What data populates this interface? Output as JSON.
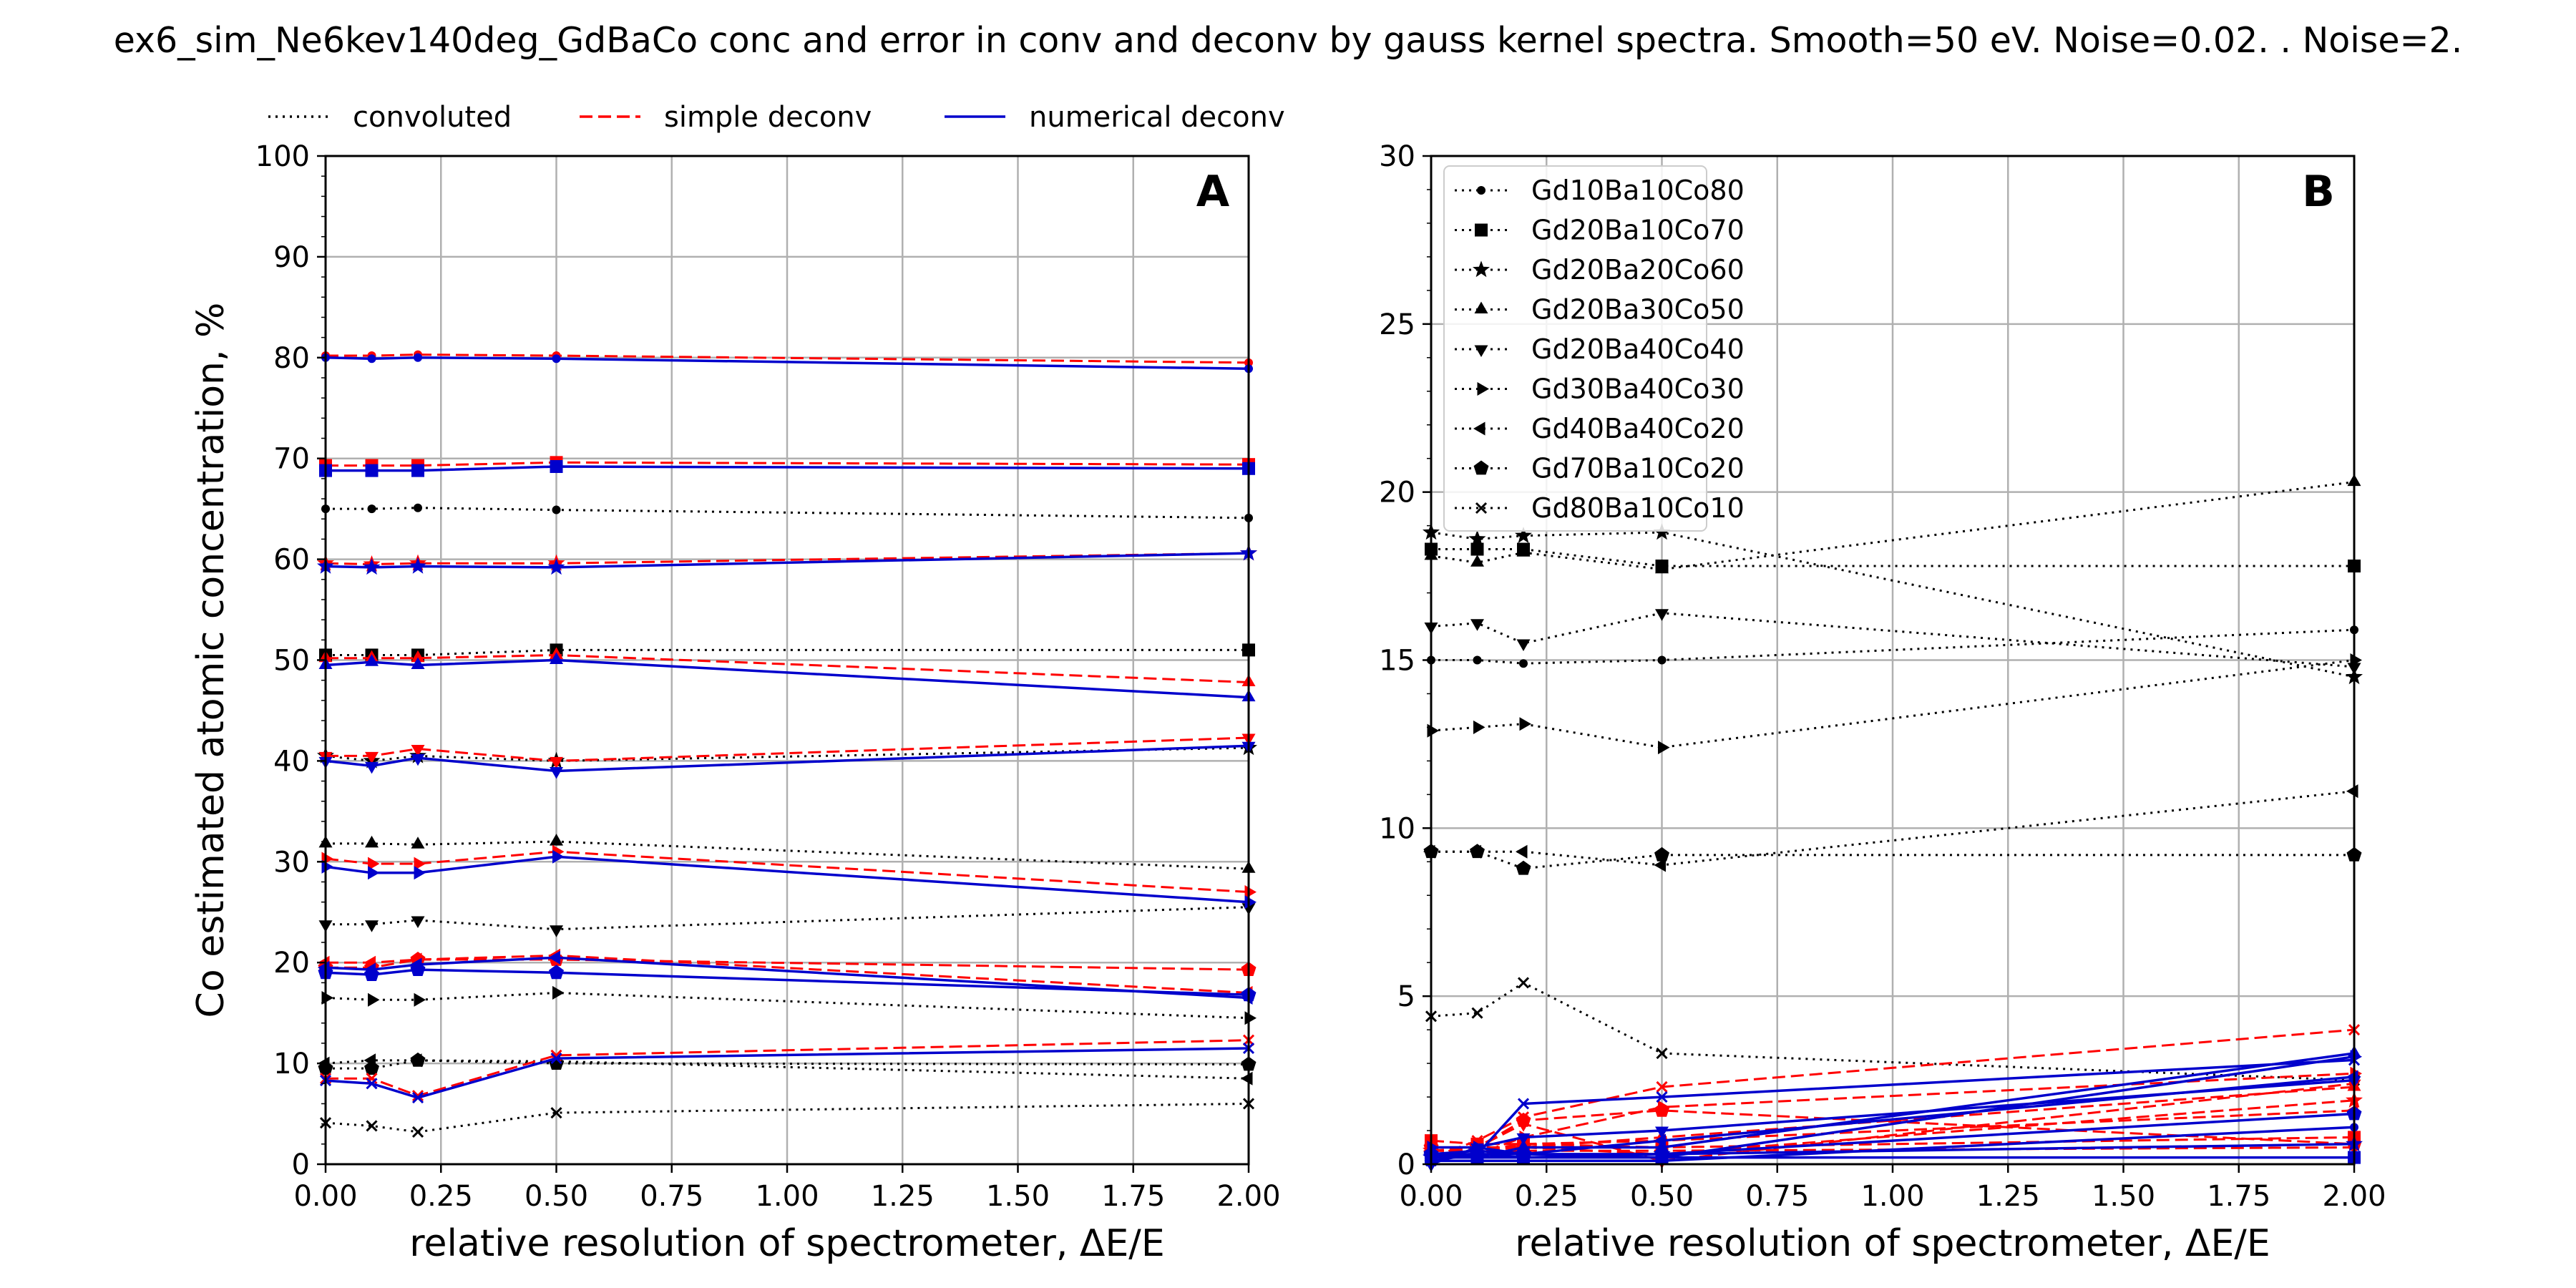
{
  "figure_title": "ex6_sim_Ne6kev140deg_GdBaCo conc and error in conv and deconv by gauss kernel spectra. Smooth=50 eV. Noise=0.02. . Noise=2.",
  "colors": {
    "convoluted": "#000000",
    "simple_deconv": "#ff0000",
    "numerical_deconv": "#0000cc",
    "grid": "#b0b0b0"
  },
  "chart_data": [
    {
      "type": "line",
      "panel_label": "A",
      "xlabel": "relative resolution of spectrometer, ΔE/E",
      "ylabel": "Co estimated atomic concentration, %",
      "xlim": [
        0,
        2
      ],
      "ylim": [
        0,
        100
      ],
      "xticks": [
        "0.00",
        "0.25",
        "0.50",
        "0.75",
        "1.00",
        "1.25",
        "1.50",
        "1.75",
        "2.00"
      ],
      "yticks": [
        "0",
        "10",
        "20",
        "30",
        "40",
        "50",
        "60",
        "70",
        "80",
        "90",
        "100"
      ],
      "grid": true,
      "legend_position": "above-plot",
      "legend": [
        {
          "label": "convoluted",
          "style": "dotted",
          "color": "#000000"
        },
        {
          "label": "simple deconv",
          "style": "dashed",
          "color": "#ff0000"
        },
        {
          "label": "numerical deconv",
          "style": "solid",
          "color": "#0000cc"
        }
      ],
      "x": [
        0.0,
        0.1,
        0.2,
        0.5,
        2.0
      ],
      "series": [
        {
          "method": "convoluted",
          "marker": "circle",
          "values": [
            65.0,
            65.0,
            65.1,
            64.9,
            64.1
          ]
        },
        {
          "method": "convoluted",
          "marker": "square",
          "values": [
            50.5,
            50.5,
            50.5,
            51.0,
            51.0
          ]
        },
        {
          "method": "convoluted",
          "marker": "star",
          "values": [
            40.5,
            40.0,
            40.5,
            40.0,
            41.3
          ]
        },
        {
          "method": "convoluted",
          "marker": "triangle-up",
          "values": [
            31.8,
            31.8,
            31.7,
            32.0,
            29.3
          ]
        },
        {
          "method": "convoluted",
          "marker": "triangle-down",
          "values": [
            23.8,
            23.8,
            24.2,
            23.3,
            25.5
          ]
        },
        {
          "method": "convoluted",
          "marker": "triangle-right",
          "values": [
            16.5,
            16.3,
            16.3,
            17.0,
            14.5
          ]
        },
        {
          "method": "convoluted",
          "marker": "triangle-left",
          "values": [
            10.0,
            10.3,
            10.3,
            10.2,
            8.5
          ]
        },
        {
          "method": "convoluted",
          "marker": "pentagon",
          "values": [
            9.5,
            9.5,
            10.3,
            10.0,
            9.9
          ]
        },
        {
          "method": "convoluted",
          "marker": "x",
          "values": [
            4.1,
            3.8,
            3.2,
            5.1,
            6.0
          ]
        },
        {
          "method": "simple deconv",
          "marker": "circle",
          "values": [
            80.2,
            80.2,
            80.3,
            80.2,
            79.5
          ]
        },
        {
          "method": "simple deconv",
          "marker": "square",
          "values": [
            69.3,
            69.3,
            69.3,
            69.6,
            69.4
          ]
        },
        {
          "method": "simple deconv",
          "marker": "star",
          "values": [
            59.6,
            59.5,
            59.6,
            59.6,
            60.6
          ]
        },
        {
          "method": "simple deconv",
          "marker": "triangle-up",
          "values": [
            50.2,
            50.2,
            50.2,
            50.5,
            47.8
          ]
        },
        {
          "method": "simple deconv",
          "marker": "triangle-down",
          "values": [
            40.5,
            40.5,
            41.2,
            40.0,
            42.3
          ]
        },
        {
          "method": "simple deconv",
          "marker": "triangle-right",
          "values": [
            30.3,
            29.8,
            29.8,
            31.0,
            27.0
          ]
        },
        {
          "method": "simple deconv",
          "marker": "triangle-left",
          "values": [
            20.0,
            20.0,
            20.3,
            20.7,
            17.0
          ]
        },
        {
          "method": "simple deconv",
          "marker": "pentagon",
          "values": [
            19.5,
            19.5,
            20.3,
            20.3,
            19.3
          ]
        },
        {
          "method": "simple deconv",
          "marker": "x",
          "values": [
            8.5,
            8.5,
            6.8,
            10.8,
            12.3
          ]
        },
        {
          "method": "numerical deconv",
          "marker": "circle",
          "values": [
            80.0,
            79.9,
            80.0,
            79.9,
            78.9
          ]
        },
        {
          "method": "numerical deconv",
          "marker": "square",
          "values": [
            68.8,
            68.8,
            68.8,
            69.2,
            69.0
          ]
        },
        {
          "method": "numerical deconv",
          "marker": "star",
          "values": [
            59.3,
            59.2,
            59.3,
            59.2,
            60.6
          ]
        },
        {
          "method": "numerical deconv",
          "marker": "triangle-up",
          "values": [
            49.5,
            49.8,
            49.5,
            50.0,
            46.3
          ]
        },
        {
          "method": "numerical deconv",
          "marker": "triangle-down",
          "values": [
            40.0,
            39.5,
            40.3,
            39.0,
            41.5
          ]
        },
        {
          "method": "numerical deconv",
          "marker": "triangle-right",
          "values": [
            29.5,
            28.9,
            28.9,
            30.5,
            26.0
          ]
        },
        {
          "method": "numerical deconv",
          "marker": "triangle-left",
          "values": [
            19.5,
            19.3,
            19.8,
            20.5,
            16.5
          ]
        },
        {
          "method": "numerical deconv",
          "marker": "pentagon",
          "values": [
            19.0,
            18.8,
            19.3,
            19.0,
            16.8
          ]
        },
        {
          "method": "numerical deconv",
          "marker": "x",
          "values": [
            8.3,
            8.0,
            6.6,
            10.5,
            11.5
          ]
        }
      ]
    },
    {
      "type": "line",
      "panel_label": "B",
      "xlabel": "relative resolution of spectrometer, ΔE/E",
      "ylabel": "",
      "xlim": [
        0,
        2
      ],
      "ylim": [
        0,
        30
      ],
      "xticks": [
        "0.00",
        "0.25",
        "0.50",
        "0.75",
        "1.00",
        "1.25",
        "1.50",
        "1.75",
        "2.00"
      ],
      "yticks": [
        "0",
        "5",
        "10",
        "15",
        "20",
        "25",
        "30"
      ],
      "grid": true,
      "legend_position": "top-left",
      "legend": [
        {
          "label": "Gd10Ba10Co80",
          "marker": "circle"
        },
        {
          "label": "Gd20Ba10Co70",
          "marker": "square"
        },
        {
          "label": "Gd20Ba20Co60",
          "marker": "star"
        },
        {
          "label": "Gd20Ba30Co50",
          "marker": "triangle-up"
        },
        {
          "label": "Gd20Ba40Co40",
          "marker": "triangle-down"
        },
        {
          "label": "Gd30Ba40Co30",
          "marker": "triangle-right"
        },
        {
          "label": "Gd40Ba40Co20",
          "marker": "triangle-left"
        },
        {
          "label": "Gd70Ba10Co20",
          "marker": "pentagon"
        },
        {
          "label": "Gd80Ba10Co10",
          "marker": "x"
        }
      ],
      "x": [
        0.0,
        0.1,
        0.2,
        0.5,
        2.0
      ],
      "series": [
        {
          "method": "convoluted",
          "marker": "circle",
          "values": [
            15.0,
            15.0,
            14.9,
            15.0,
            15.9
          ]
        },
        {
          "method": "convoluted",
          "marker": "square",
          "values": [
            18.3,
            18.3,
            18.3,
            17.8,
            17.8
          ]
        },
        {
          "method": "convoluted",
          "marker": "star",
          "values": [
            18.8,
            18.6,
            18.7,
            18.8,
            14.5
          ]
        },
        {
          "method": "convoluted",
          "marker": "triangle-up",
          "values": [
            18.1,
            17.9,
            18.2,
            17.7,
            20.3
          ]
        },
        {
          "method": "convoluted",
          "marker": "triangle-down",
          "values": [
            16.0,
            16.1,
            15.5,
            16.4,
            14.8
          ]
        },
        {
          "method": "convoluted",
          "marker": "triangle-right",
          "values": [
            12.9,
            13.0,
            13.1,
            12.4,
            15.0
          ]
        },
        {
          "method": "convoluted",
          "marker": "triangle-left",
          "values": [
            9.3,
            9.3,
            9.3,
            8.9,
            11.1
          ]
        },
        {
          "method": "convoluted",
          "marker": "pentagon",
          "values": [
            9.3,
            9.3,
            8.8,
            9.2,
            9.2
          ]
        },
        {
          "method": "convoluted",
          "marker": "x",
          "values": [
            4.4,
            4.5,
            5.4,
            3.3,
            2.5
          ]
        },
        {
          "method": "simple deconv",
          "marker": "circle",
          "values": [
            0.3,
            0.3,
            0.4,
            0.4,
            0.5
          ]
        },
        {
          "method": "simple deconv",
          "marker": "square",
          "values": [
            0.7,
            0.6,
            0.6,
            0.5,
            0.8
          ]
        },
        {
          "method": "simple deconv",
          "marker": "star",
          "values": [
            0.4,
            0.5,
            0.5,
            0.3,
            1.9
          ]
        },
        {
          "method": "simple deconv",
          "marker": "triangle-up",
          "values": [
            0.4,
            0.4,
            0.5,
            0.8,
            2.3
          ]
        },
        {
          "method": "simple deconv",
          "marker": "triangle-down",
          "values": [
            0.5,
            0.5,
            1.2,
            0.1,
            2.4
          ]
        },
        {
          "method": "simple deconv",
          "marker": "triangle-right",
          "values": [
            0.3,
            0.3,
            0.8,
            1.7,
            2.7
          ]
        },
        {
          "method": "simple deconv",
          "marker": "triangle-left",
          "values": [
            0.4,
            0.4,
            0.6,
            0.7,
            1.6
          ]
        },
        {
          "method": "simple deconv",
          "marker": "pentagon",
          "values": [
            0.5,
            0.5,
            1.3,
            1.6,
            0.6
          ]
        },
        {
          "method": "simple deconv",
          "marker": "x",
          "values": [
            0.2,
            0.7,
            1.4,
            2.3,
            4.0
          ]
        },
        {
          "method": "numerical deconv",
          "marker": "circle",
          "values": [
            0.1,
            0.1,
            0.1,
            0.1,
            1.1
          ]
        },
        {
          "method": "numerical deconv",
          "marker": "square",
          "values": [
            0.2,
            0.2,
            0.2,
            0.2,
            0.2
          ]
        },
        {
          "method": "numerical deconv",
          "marker": "star",
          "values": [
            0.2,
            0.3,
            0.3,
            0.3,
            0.6
          ]
        },
        {
          "method": "numerical deconv",
          "marker": "triangle-up",
          "values": [
            0.3,
            0.2,
            0.5,
            0.5,
            3.3
          ]
        },
        {
          "method": "numerical deconv",
          "marker": "triangle-down",
          "values": [
            0.0,
            0.5,
            0.8,
            1.0,
            2.5
          ]
        },
        {
          "method": "numerical deconv",
          "marker": "triangle-right",
          "values": [
            0.5,
            0.5,
            0.3,
            0.2,
            3.2
          ]
        },
        {
          "method": "numerical deconv",
          "marker": "triangle-left",
          "values": [
            0.3,
            0.4,
            0.3,
            0.7,
            2.6
          ]
        },
        {
          "method": "numerical deconv",
          "marker": "pentagon",
          "values": [
            0.3,
            0.3,
            0.2,
            0.3,
            1.5
          ]
        },
        {
          "method": "numerical deconv",
          "marker": "x",
          "values": [
            0.1,
            0.3,
            1.8,
            2.0,
            3.1
          ]
        }
      ]
    }
  ]
}
